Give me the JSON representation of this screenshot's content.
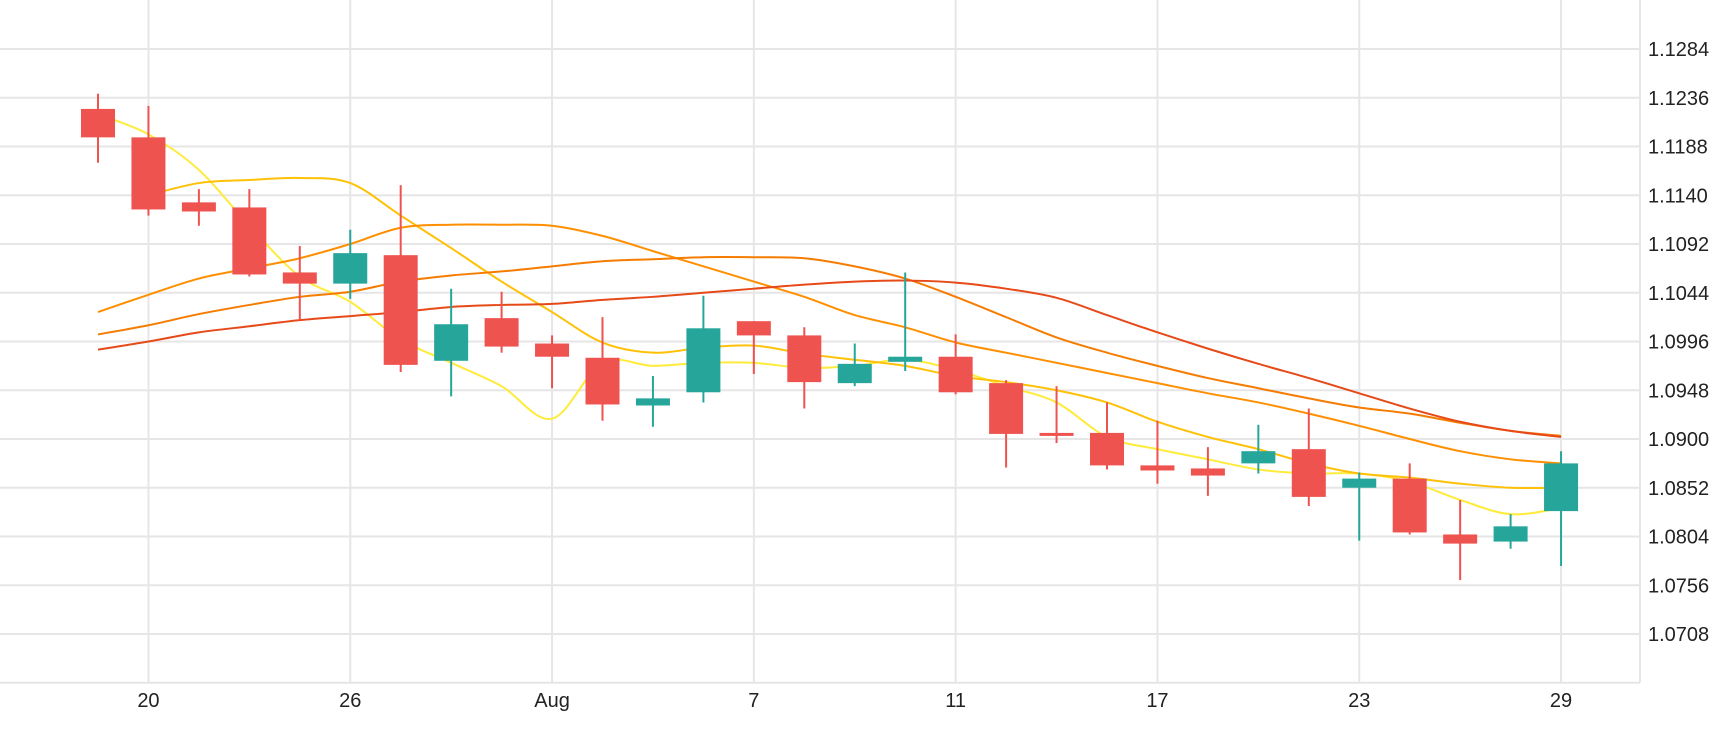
{
  "chart_data": {
    "type": "candlestick",
    "title": "",
    "xlabel": "",
    "ylabel": "",
    "grid": true,
    "legend": "none",
    "x_tick_labels": [
      "20",
      "26",
      "Aug",
      "7",
      "11",
      "17",
      "23",
      "29"
    ],
    "y_tick_labels": [
      "1.1284",
      "1.1236",
      "1.1188",
      "1.1140",
      "1.1092",
      "1.1044",
      "1.0996",
      "1.0948",
      "1.0900",
      "1.0852",
      "1.0804",
      "1.0756",
      "1.0708"
    ],
    "y_ticks": [
      1.1284,
      1.1236,
      1.1188,
      1.114,
      1.1092,
      1.1044,
      1.0996,
      1.0948,
      1.09,
      1.0852,
      1.0804,
      1.0756,
      1.0708
    ],
    "ylim": [
      1.066,
      1.1332
    ],
    "colors": {
      "up": "#26a69a",
      "down": "#ef5350",
      "grid": "#e6e6e6",
      "ma_5": "#ffeb3b",
      "ma_10": "#ffc107",
      "ma_20": "#ff8f00",
      "ma_30": "#f57c00",
      "ma_60": "#e64a19"
    },
    "candles": [
      {
        "date": "Jul 19",
        "open": 1.1225,
        "high": 1.124,
        "low": 1.1172,
        "close": 1.1197
      },
      {
        "date": "Jul 20",
        "open": 1.1197,
        "high": 1.1228,
        "low": 1.112,
        "close": 1.1126
      },
      {
        "date": "Jul 21",
        "open": 1.1133,
        "high": 1.1146,
        "low": 1.111,
        "close": 1.1124
      },
      {
        "date": "Jul 24",
        "open": 1.1128,
        "high": 1.1146,
        "low": 1.106,
        "close": 1.1062
      },
      {
        "date": "Jul 25",
        "open": 1.1064,
        "high": 1.109,
        "low": 1.1018,
        "close": 1.1053
      },
      {
        "date": "Jul 26",
        "open": 1.1053,
        "high": 1.1106,
        "low": 1.1038,
        "close": 1.1083
      },
      {
        "date": "Jul 27",
        "open": 1.1081,
        "high": 1.115,
        "low": 1.0966,
        "close": 1.0973
      },
      {
        "date": "Jul 28",
        "open": 1.0977,
        "high": 1.1048,
        "low": 1.0942,
        "close": 1.1013
      },
      {
        "date": "Jul 31",
        "open": 1.1019,
        "high": 1.1045,
        "low": 1.0985,
        "close": 1.0991
      },
      {
        "date": "Aug 1",
        "open": 1.0994,
        "high": 1.1002,
        "low": 1.095,
        "close": 1.0981
      },
      {
        "date": "Aug 2",
        "open": 1.098,
        "high": 1.102,
        "low": 1.0918,
        "close": 1.0934
      },
      {
        "date": "Aug 3",
        "open": 1.0933,
        "high": 1.0962,
        "low": 1.0912,
        "close": 1.094
      },
      {
        "date": "Aug 4",
        "open": 1.0946,
        "high": 1.1041,
        "low": 1.0936,
        "close": 1.1009
      },
      {
        "date": "Aug 7",
        "open": 1.1016,
        "high": 1.1016,
        "low": 1.0964,
        "close": 1.1002
      },
      {
        "date": "Aug 8",
        "open": 1.1002,
        "high": 1.101,
        "low": 1.093,
        "close": 1.0956
      },
      {
        "date": "Aug 9",
        "open": 1.0955,
        "high": 1.0994,
        "low": 1.0952,
        "close": 1.0974
      },
      {
        "date": "Aug 10",
        "open": 1.0976,
        "high": 1.1064,
        "low": 1.0967,
        "close": 1.0981
      },
      {
        "date": "Aug 11",
        "open": 1.0981,
        "high": 1.1003,
        "low": 1.0944,
        "close": 1.0946
      },
      {
        "date": "Aug 14",
        "open": 1.0955,
        "high": 1.0958,
        "low": 1.0872,
        "close": 1.0905
      },
      {
        "date": "Aug 15",
        "open": 1.0906,
        "high": 1.0952,
        "low": 1.0896,
        "close": 1.0904
      },
      {
        "date": "Aug 16",
        "open": 1.0906,
        "high": 1.0936,
        "low": 1.087,
        "close": 1.0874
      },
      {
        "date": "Aug 17",
        "open": 1.0874,
        "high": 1.0918,
        "low": 1.0856,
        "close": 1.0869
      },
      {
        "date": "Aug 18",
        "open": 1.0871,
        "high": 1.0892,
        "low": 1.0844,
        "close": 1.0864
      },
      {
        "date": "Aug 21",
        "open": 1.0876,
        "high": 1.0914,
        "low": 1.0866,
        "close": 1.0888
      },
      {
        "date": "Aug 22",
        "open": 1.089,
        "high": 1.093,
        "low": 1.0834,
        "close": 1.0843
      },
      {
        "date": "Aug 23",
        "open": 1.0852,
        "high": 1.0867,
        "low": 1.08,
        "close": 1.0861
      },
      {
        "date": "Aug 24",
        "open": 1.0861,
        "high": 1.0876,
        "low": 1.0806,
        "close": 1.0808
      },
      {
        "date": "Aug 25",
        "open": 1.0806,
        "high": 1.084,
        "low": 1.0761,
        "close": 1.0797
      },
      {
        "date": "Aug 28",
        "open": 1.0799,
        "high": 1.0826,
        "low": 1.0792,
        "close": 1.0814
      },
      {
        "date": "Aug 29",
        "open": 1.0829,
        "high": 1.0888,
        "low": 1.0775,
        "close": 1.0876
      }
    ],
    "moving_averages": [
      {
        "key": "ma_5",
        "values": [
          1.122,
          1.12,
          1.1165,
          1.111,
          1.106,
          1.1035,
          1.0998,
          1.0975,
          1.0952,
          1.092,
          1.0975,
          1.0972,
          1.0975,
          1.0975,
          1.097,
          1.0972,
          1.0978,
          1.0968,
          1.0952,
          1.0936,
          1.0902,
          1.089,
          1.088,
          1.087,
          1.0866,
          1.0866,
          1.0858,
          1.084,
          1.0826,
          1.0832
        ]
      },
      {
        "key": "ma_10",
        "values": [
          null,
          1.114,
          1.1152,
          1.1155,
          1.1157,
          1.1152,
          1.112,
          1.1088,
          1.1055,
          1.1025,
          1.0995,
          1.0985,
          1.099,
          1.0992,
          1.0984,
          1.0978,
          1.0972,
          1.0962,
          1.0956,
          1.0948,
          1.0936,
          1.0917,
          1.0902,
          1.089,
          1.0876,
          1.0866,
          1.0862,
          1.0856,
          1.0852,
          1.0852
        ]
      },
      {
        "key": "ma_20",
        "values": [
          1.1025,
          1.1042,
          1.1058,
          1.1068,
          1.1078,
          1.1092,
          1.1108,
          1.1111,
          1.1111,
          1.111,
          1.11,
          1.1085,
          1.107,
          1.1055,
          1.104,
          1.1022,
          1.101,
          1.0995,
          1.0985,
          1.0975,
          1.0965,
          1.0955,
          1.0945,
          1.0936,
          1.0925,
          1.0913,
          1.09,
          1.0888,
          1.088,
          1.0876
        ]
      },
      {
        "key": "ma_30",
        "values": [
          1.1003,
          1.1012,
          1.1023,
          1.1032,
          1.104,
          1.1045,
          1.1055,
          1.1061,
          1.1065,
          1.107,
          1.1075,
          1.1077,
          1.1079,
          1.1079,
          1.1078,
          1.107,
          1.1058,
          1.104,
          1.102,
          1.1,
          1.0985,
          1.0972,
          1.096,
          1.095,
          1.094,
          1.0931,
          1.0925,
          1.0916,
          1.0908,
          1.0903
        ]
      },
      {
        "key": "ma_60",
        "values": [
          1.0988,
          1.0996,
          1.1005,
          1.1011,
          1.1017,
          1.1021,
          1.1025,
          1.103,
          1.1032,
          1.1033,
          1.1037,
          1.104,
          1.1044,
          1.1048,
          1.1052,
          1.1055,
          1.1056,
          1.1054,
          1.1048,
          1.1039,
          1.1022,
          1.1005,
          1.0989,
          1.0974,
          1.096,
          1.0945,
          1.093,
          1.0917,
          1.0908,
          1.0902
        ]
      }
    ]
  }
}
